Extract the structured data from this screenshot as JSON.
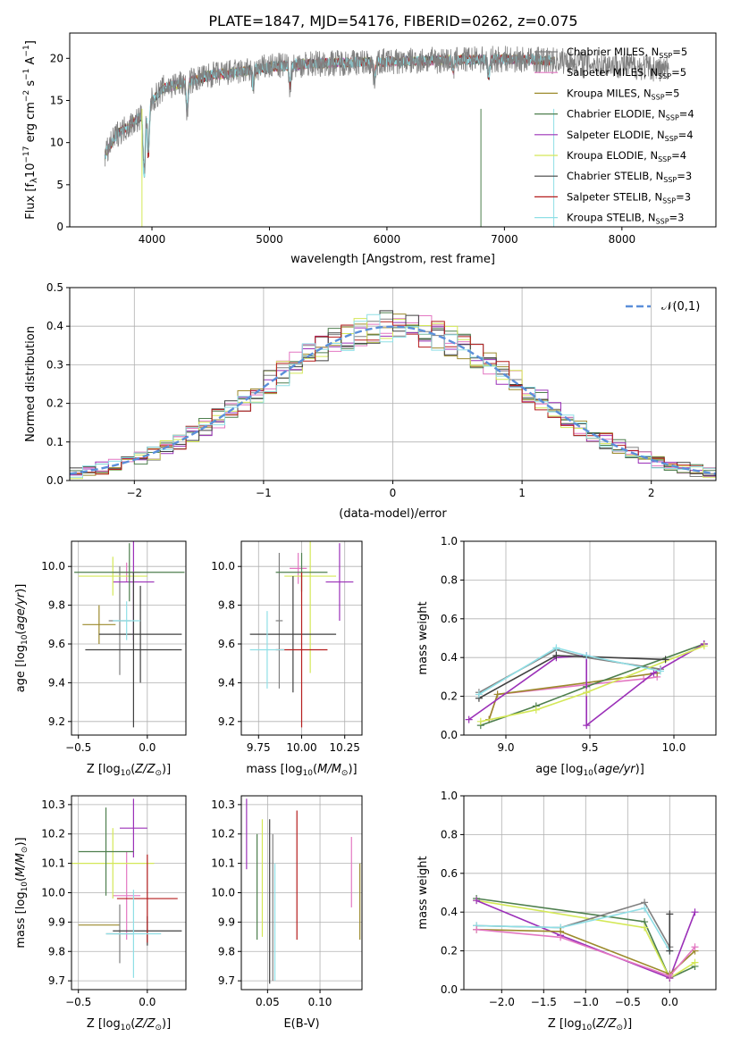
{
  "title": "PLATE=1847, MJD=54176, FIBERID=0262, z=0.075",
  "models": [
    {
      "name": "Chabrier MILES, N",
      "nssp": "5",
      "color": "#808080"
    },
    {
      "name": "Salpeter MILES, N",
      "nssp": "5",
      "color": "#e377c2"
    },
    {
      "name": "Kroupa MILES, N",
      "nssp": "5",
      "color": "#9c8a2c"
    },
    {
      "name": "Chabrier ELODIE, N",
      "nssp": "4",
      "color": "#4e7f4e"
    },
    {
      "name": "Salpeter ELODIE, N",
      "nssp": "4",
      "color": "#9b30b8"
    },
    {
      "name": "Kroupa ELODIE, N",
      "nssp": "4",
      "color": "#d4e857"
    },
    {
      "name": "Chabrier STELIB, N",
      "nssp": "3",
      "color": "#404040"
    },
    {
      "name": "Salpeter STELIB, N",
      "nssp": "3",
      "color": "#b51d1d"
    },
    {
      "name": "Kroupa STELIB, N",
      "nssp": "3",
      "color": "#8fdfe6"
    }
  ],
  "nssp_sub": "SSP",
  "chart_data": [
    {
      "id": "spectrum",
      "type": "line",
      "xlabel": "wavelength [Angstrom, rest frame]",
      "ylabel": "Flux [f",
      "xlim": [
        3300,
        8800
      ],
      "ylim": [
        0,
        23
      ],
      "xticks": [
        4000,
        5000,
        6000,
        7000,
        8000
      ],
      "yticks": [
        0,
        5,
        10,
        15,
        20
      ],
      "grid": false,
      "legend": "right",
      "profile_x": [
        3600,
        3700,
        3900,
        4000,
        4100,
        4300,
        4500,
        4800,
        5000,
        5300,
        5600,
        6000,
        6500,
        7000,
        7500,
        8000,
        8500,
        8700
      ],
      "profile_y": [
        8.5,
        11,
        13,
        15,
        16.5,
        17.2,
        18,
        18.5,
        19,
        19.3,
        19.5,
        19.6,
        19.8,
        19.9,
        19.7,
        19.2,
        18.5,
        18.2
      ],
      "dips": [
        [
          3934,
          7.5
        ],
        [
          3969,
          6
        ],
        [
          4300,
          3.5
        ],
        [
          4861,
          2
        ],
        [
          5175,
          2.5
        ],
        [
          5893,
          2
        ],
        [
          6563,
          1.2
        ],
        [
          6867,
          2
        ]
      ]
    },
    {
      "id": "residuals",
      "type": "line",
      "xlabel": "(data-model)/error",
      "ylabel": "Normed distribution",
      "xlim": [
        -2.5,
        2.5
      ],
      "ylim": [
        0,
        0.5
      ],
      "xticks": [
        -2,
        -1,
        0,
        1,
        2
      ],
      "yticks": [
        0.0,
        0.1,
        0.2,
        0.3,
        0.4,
        0.5
      ],
      "grid": true,
      "legend": "top-right",
      "reference": {
        "name": "𝒩(0,1)",
        "color": "#5b8fd9"
      },
      "bin_width": 0.1
    },
    {
      "id": "z_age",
      "type": "scatter",
      "xlabel": "Z [log",
      "ylabel": "age  [log",
      "xlim": [
        -0.55,
        0.28
      ],
      "ylim": [
        9.13,
        10.13
      ],
      "xticks": [
        -0.5,
        0.0
      ],
      "yticks": [
        9.2,
        9.4,
        9.6,
        9.8,
        10.0
      ],
      "grid": true,
      "points": [
        {
          "x": -0.35,
          "y": 9.7,
          "xerr": 0.12,
          "yerr": 0.1,
          "c": 2
        },
        {
          "x": -0.2,
          "y": 9.72,
          "xerr": 0.08,
          "yerr": 0.28,
          "c": 0
        },
        {
          "x": -0.15,
          "y": 9.97,
          "xerr": 0.1,
          "yerr": 0.05,
          "c": 1
        },
        {
          "x": -0.1,
          "y": 9.92,
          "xerr": 0.15,
          "yerr": 0.3,
          "c": 4
        },
        {
          "x": -0.25,
          "y": 9.95,
          "xerr": 0.25,
          "yerr": 0.1,
          "c": 5
        },
        {
          "x": -0.13,
          "y": 9.97,
          "xerr": 0.4,
          "yerr": 0.15,
          "c": 3
        },
        {
          "x": -0.05,
          "y": 9.65,
          "xerr": 0.3,
          "yerr": 0.25,
          "c": 6
        },
        {
          "x": -0.1,
          "y": 9.57,
          "xerr": 0.35,
          "yerr": 0.4,
          "c": 6
        },
        {
          "x": -0.15,
          "y": 9.72,
          "xerr": 0.1,
          "yerr": 0.1,
          "c": 8
        }
      ]
    },
    {
      "id": "mass_age",
      "type": "scatter",
      "xlabel": "mass [log",
      "ylabel": "",
      "xlim": [
        9.65,
        10.35
      ],
      "ylim": [
        9.13,
        10.13
      ],
      "xticks": [
        9.75,
        10.0,
        10.25
      ],
      "yticks": [
        9.2,
        9.4,
        9.6,
        9.8,
        10.0
      ],
      "grid": true,
      "points": [
        {
          "x": 9.87,
          "y": 9.72,
          "xerr": 0.02,
          "yerr": 0.35,
          "c": 0
        },
        {
          "x": 9.98,
          "y": 9.99,
          "xerr": 0.05,
          "yerr": 0.08,
          "c": 1
        },
        {
          "x": 10.22,
          "y": 9.92,
          "xerr": 0.08,
          "yerr": 0.2,
          "c": 4
        },
        {
          "x": 10.05,
          "y": 9.95,
          "xerr": 0.15,
          "yerr": 0.5,
          "c": 5
        },
        {
          "x": 10.0,
          "y": 9.97,
          "xerr": 0.15,
          "yerr": 0.1,
          "c": 3
        },
        {
          "x": 9.95,
          "y": 9.65,
          "xerr": 0.25,
          "yerr": 0.3,
          "c": 6
        },
        {
          "x": 10.0,
          "y": 9.57,
          "xerr": 0.15,
          "yerr": 0.4,
          "c": 7
        },
        {
          "x": 9.8,
          "y": 9.57,
          "xerr": 0.1,
          "yerr": 0.2,
          "c": 8
        }
      ]
    },
    {
      "id": "weights_age",
      "type": "line",
      "xlabel": "age  [log",
      "ylabel": "mass weight",
      "xlim": [
        8.75,
        10.25
      ],
      "ylim": [
        0,
        1.0
      ],
      "xticks": [
        9.0,
        9.5,
        10.0
      ],
      "yticks": [
        0.0,
        0.2,
        0.4,
        0.6,
        0.8,
        1.0
      ],
      "grid": true,
      "series": [
        {
          "c": 0,
          "x": [
            8.84,
            9.3,
            9.48,
            9.92
          ],
          "y": [
            0.22,
            0.44,
            0.4,
            0.34
          ]
        },
        {
          "c": 1,
          "x": [
            8.9,
            8.95,
            9.48,
            9.82,
            9.9
          ],
          "y": [
            0.08,
            0.21,
            0.26,
            0.29,
            0.3
          ]
        },
        {
          "c": 2,
          "x": [
            8.9,
            8.95,
            9.48,
            9.9
          ],
          "y": [
            0.08,
            0.21,
            0.27,
            0.32
          ]
        },
        {
          "c": 3,
          "x": [
            8.85,
            9.18,
            9.48,
            10.18
          ],
          "y": [
            0.05,
            0.15,
            0.25,
            0.47
          ]
        },
        {
          "c": 4,
          "x": [
            8.78,
            9.3,
            9.48,
            9.48,
            9.88,
            10.18
          ],
          "y": [
            0.08,
            0.4,
            0.41,
            0.05,
            0.32,
            0.47
          ]
        },
        {
          "c": 5,
          "x": [
            8.85,
            9.18,
            9.48,
            10.18
          ],
          "y": [
            0.07,
            0.13,
            0.22,
            0.46
          ]
        },
        {
          "c": 6,
          "x": [
            8.84,
            9.3,
            9.95
          ],
          "y": [
            0.19,
            0.41,
            0.39
          ]
        },
        {
          "c": 8,
          "x": [
            8.84,
            9.3,
            9.48,
            9.92
          ],
          "y": [
            0.21,
            0.45,
            0.41,
            0.33
          ]
        }
      ]
    },
    {
      "id": "z_mass",
      "type": "scatter",
      "xlabel": "Z [log",
      "ylabel": "mass [log",
      "xlim": [
        -0.55,
        0.28
      ],
      "ylim": [
        9.67,
        10.33
      ],
      "xticks": [
        -0.5,
        0.0
      ],
      "yticks": [
        9.7,
        9.8,
        9.9,
        10.0,
        10.1,
        10.2,
        10.3
      ],
      "grid": true,
      "points": [
        {
          "x": -0.35,
          "y": 9.89,
          "xerr": 0.15,
          "yerr": 0.0,
          "c": 2
        },
        {
          "x": -0.2,
          "y": 9.86,
          "xerr": 0.1,
          "yerr": 0.1,
          "c": 0
        },
        {
          "x": -0.15,
          "y": 9.99,
          "xerr": 0.1,
          "yerr": 0.15,
          "c": 1
        },
        {
          "x": -0.1,
          "y": 10.22,
          "xerr": 0.1,
          "yerr": 0.1,
          "c": 4
        },
        {
          "x": -0.25,
          "y": 10.1,
          "xerr": 0.3,
          "yerr": 0.12,
          "c": 5
        },
        {
          "x": -0.3,
          "y": 10.14,
          "xerr": 0.2,
          "yerr": 0.15,
          "c": 3
        },
        {
          "x": 0.0,
          "y": 9.87,
          "xerr": 0.25,
          "yerr": 0.05,
          "c": 6
        },
        {
          "x": 0.0,
          "y": 9.98,
          "xerr": 0.22,
          "yerr": 0.15,
          "c": 7
        },
        {
          "x": -0.1,
          "y": 9.86,
          "xerr": 0.2,
          "yerr": 0.15,
          "c": 8
        }
      ]
    },
    {
      "id": "ebv_mass",
      "type": "scatter",
      "xlabel": "E(B-V)",
      "ylabel": "",
      "xlim": [
        0.025,
        0.14
      ],
      "ylim": [
        9.67,
        10.33
      ],
      "xticks": [
        0.05,
        0.1
      ],
      "yticks": [
        9.7,
        9.8,
        9.9,
        10.0,
        10.1,
        10.2,
        10.3
      ],
      "grid": true,
      "points": [
        {
          "x": 0.03,
          "y": 10.2,
          "xerr": 0,
          "yerr": 0.12,
          "c": 4
        },
        {
          "x": 0.04,
          "y": 10.02,
          "xerr": 0,
          "yerr": 0.18,
          "c": 3
        },
        {
          "x": 0.045,
          "y": 10.05,
          "xerr": 0,
          "yerr": 0.2,
          "c": 5
        },
        {
          "x": 0.052,
          "y": 9.97,
          "xerr": 0,
          "yerr": 0.28,
          "c": 6
        },
        {
          "x": 0.055,
          "y": 9.95,
          "xerr": 0,
          "yerr": 0.25,
          "c": 0
        },
        {
          "x": 0.057,
          "y": 9.9,
          "xerr": 0,
          "yerr": 0.2,
          "c": 8
        },
        {
          "x": 0.078,
          "y": 10.06,
          "xerr": 0,
          "yerr": 0.22,
          "c": 7
        },
        {
          "x": 0.13,
          "y": 10.07,
          "xerr": 0,
          "yerr": 0.12,
          "c": 1
        },
        {
          "x": 0.138,
          "y": 9.97,
          "xerr": 0,
          "yerr": 0.13,
          "c": 2
        }
      ]
    },
    {
      "id": "weights_z",
      "type": "line",
      "xlabel": "Z [log",
      "ylabel": "mass weight",
      "xlim": [
        -2.45,
        0.55
      ],
      "ylim": [
        0,
        1.0
      ],
      "xticks": [
        -2.0,
        -1.5,
        -1.0,
        -0.5,
        0.0
      ],
      "yticks": [
        0.0,
        0.2,
        0.4,
        0.6,
        0.8,
        1.0
      ],
      "grid": true,
      "series": [
        {
          "c": 3,
          "x": [
            -2.3,
            -0.3,
            0.0,
            0.3
          ],
          "y": [
            0.47,
            0.35,
            0.06,
            0.12
          ]
        },
        {
          "c": 5,
          "x": [
            -2.3,
            -0.3,
            0.0,
            0.3
          ],
          "y": [
            0.46,
            0.32,
            0.06,
            0.14
          ]
        },
        {
          "c": 4,
          "x": [
            -2.3,
            -1.3,
            0.0,
            0.3
          ],
          "y": [
            0.46,
            0.28,
            0.06,
            0.4
          ]
        },
        {
          "c": 0,
          "x": [
            -2.3,
            -1.3,
            -0.3,
            0.0
          ],
          "y": [
            0.33,
            0.32,
            0.45,
            0.22
          ]
        },
        {
          "c": 8,
          "x": [
            -2.3,
            -1.3,
            -0.3,
            0.0
          ],
          "y": [
            0.33,
            0.32,
            0.42,
            0.2
          ]
        },
        {
          "c": 2,
          "x": [
            -2.3,
            -1.3,
            0.0,
            0.3
          ],
          "y": [
            0.31,
            0.3,
            0.08,
            0.2
          ]
        },
        {
          "c": 1,
          "x": [
            -2.3,
            -1.3,
            0.0,
            0.3
          ],
          "y": [
            0.31,
            0.27,
            0.07,
            0.22
          ]
        },
        {
          "c": 6,
          "x": [
            0.0,
            0.0
          ],
          "y": [
            0.39,
            0.2
          ]
        }
      ]
    }
  ]
}
